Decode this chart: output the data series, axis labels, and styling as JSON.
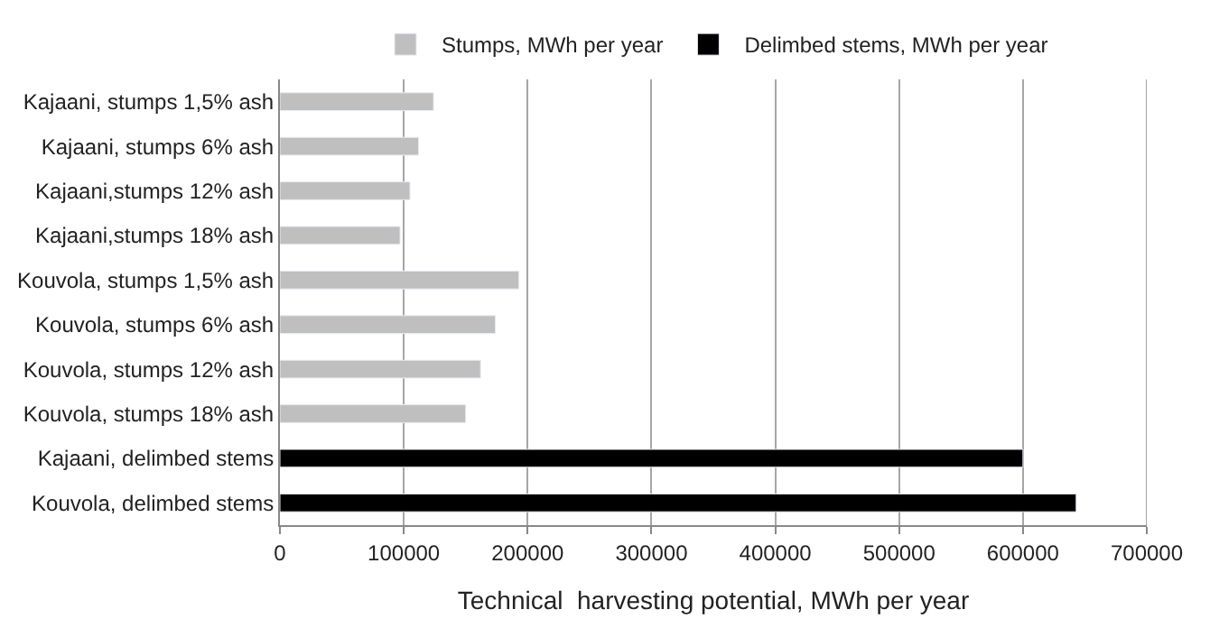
{
  "chart_data": {
    "type": "bar",
    "orientation": "horizontal",
    "xlabel": "Technical  harvesting potential, MWh per year",
    "categories": [
      "Kajaani, stumps 1,5% ash",
      "Kajaani, stumps 6% ash",
      "Kajaani,stumps 12% ash",
      "Kajaani,stumps 18% ash",
      "Kouvola, stumps 1,5% ash",
      "Kouvola, stumps 6% ash",
      "Kouvola, stumps 12% ash",
      "Kouvola, stumps 18% ash",
      "Kajaani, delimbed stems",
      "Kouvola, delimbed stems"
    ],
    "series": [
      {
        "name": "Stumps, MWh per year",
        "color": "#bfbfbf",
        "values": [
          124000,
          112000,
          105000,
          97000,
          193000,
          174000,
          162000,
          150000,
          null,
          null
        ]
      },
      {
        "name": "Delimbed stems, MWh per year",
        "color": "#000000",
        "values": [
          null,
          null,
          null,
          null,
          null,
          null,
          null,
          null,
          600000,
          643000
        ]
      }
    ],
    "xlim": [
      0,
      700000
    ],
    "xticks": [
      0,
      100000,
      200000,
      300000,
      400000,
      500000,
      600000,
      700000
    ],
    "grid": "x",
    "legend": "top"
  }
}
